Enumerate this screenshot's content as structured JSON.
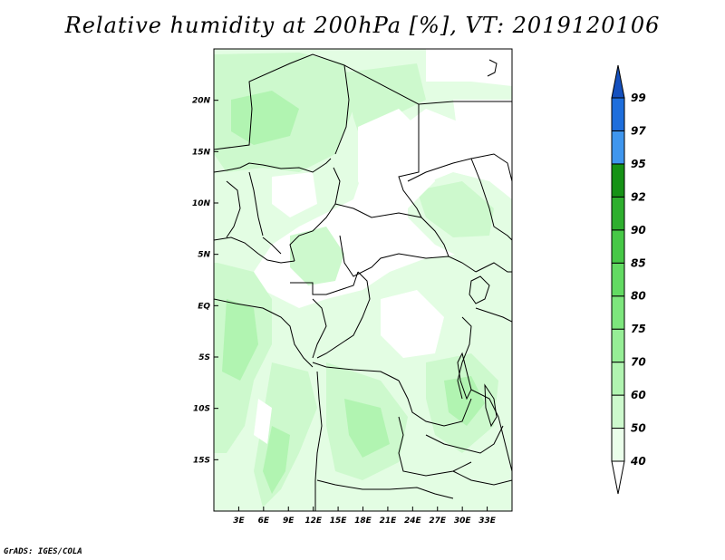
{
  "title": "Relative humidity at 200hPa [%], VT: 2019120106",
  "credit": "GrADS: IGES/COLA",
  "map": {
    "lon_range": [
      0,
      36
    ],
    "lat_range": [
      -20,
      25
    ],
    "lat_ticks": [
      {
        "value": 20,
        "label": "20N"
      },
      {
        "value": 15,
        "label": "15N"
      },
      {
        "value": 10,
        "label": "10N"
      },
      {
        "value": 5,
        "label": "5N"
      },
      {
        "value": 0,
        "label": "EQ"
      },
      {
        "value": -5,
        "label": "5S"
      },
      {
        "value": -10,
        "label": "10S"
      },
      {
        "value": -15,
        "label": "15S"
      }
    ],
    "lon_ticks": [
      {
        "value": 3,
        "label": "3E"
      },
      {
        "value": 6,
        "label": "6E"
      },
      {
        "value": 9,
        "label": "9E"
      },
      {
        "value": 12,
        "label": "12E"
      },
      {
        "value": 15,
        "label": "15E"
      },
      {
        "value": 18,
        "label": "18E"
      },
      {
        "value": 21,
        "label": "21E"
      },
      {
        "value": 24,
        "label": "24E"
      },
      {
        "value": 27,
        "label": "27E"
      },
      {
        "value": 30,
        "label": "30E"
      },
      {
        "value": 33,
        "label": "33E"
      }
    ]
  },
  "colorbar": {
    "levels": [
      "40",
      "50",
      "60",
      "70",
      "75",
      "80",
      "85",
      "90",
      "92",
      "95",
      "97",
      "99"
    ],
    "colors": [
      "#ffffff",
      "#eafeea",
      "#cdf9cd",
      "#b1f4b1",
      "#96ee96",
      "#7de67d",
      "#62da62",
      "#46c846",
      "#2eaf2e",
      "#169216",
      "#3f96ee",
      "#1e6edc",
      "#1450be"
    ]
  }
}
